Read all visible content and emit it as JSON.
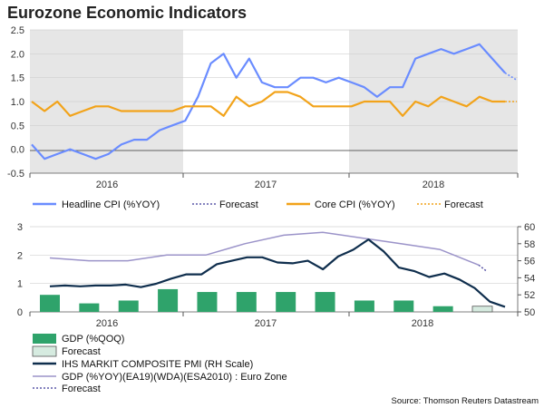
{
  "title": "Eurozone Economic Indicators",
  "source": "Source: Thomson Reuters Datastream",
  "colors": {
    "shade": "#e6e6e6",
    "headline": "#6a8cff",
    "core": "#f2a31a",
    "gdp_bar": "#2fa36b",
    "gdp_forecast_bar": "#d6ebe0",
    "pmi": "#0f2e4d",
    "gdp_yoy": "#9b93c9",
    "gdp_yoy_forecast": "#5b58a8"
  },
  "chart_data": [
    {
      "type": "line",
      "name": "CPI panel",
      "ylim": [
        -0.5,
        2.5
      ],
      "yticks": [
        "2.5",
        "2.0",
        "1.5",
        "1.0",
        "0.5",
        "0.0",
        "-0.5"
      ],
      "year_labels": [
        "2016",
        "2017",
        "2018"
      ],
      "shaded_years": [
        "2016",
        "2018"
      ],
      "series": [
        {
          "name": "Headline CPI (%YOY)",
          "values": [
            0.1,
            -0.2,
            -0.1,
            0.0,
            -0.1,
            -0.2,
            -0.1,
            0.1,
            0.2,
            0.2,
            0.4,
            0.5,
            0.6,
            1.1,
            1.8,
            2.0,
            1.5,
            1.9,
            1.4,
            1.3,
            1.3,
            1.5,
            1.5,
            1.4,
            1.5,
            1.4,
            1.3,
            1.1,
            1.3,
            1.3,
            1.9,
            2.0,
            2.1,
            2.0,
            2.1,
            2.2,
            1.9,
            1.6
          ]
        },
        {
          "name": "Forecast",
          "values": [
            1.6,
            1.45
          ]
        },
        {
          "name": "Core CPI (%YOY)",
          "values": [
            1.0,
            0.8,
            1.0,
            0.7,
            0.8,
            0.9,
            0.9,
            0.8,
            0.8,
            0.8,
            0.8,
            0.8,
            0.9,
            0.9,
            0.9,
            0.7,
            1.1,
            0.9,
            1.0,
            1.2,
            1.2,
            1.1,
            0.9,
            0.9,
            0.9,
            0.9,
            1.0,
            1.0,
            1.0,
            0.7,
            1.0,
            0.9,
            1.1,
            1.0,
            0.9,
            1.1,
            1.0,
            1.0
          ]
        },
        {
          "name": "Forecast",
          "values": [
            1.0,
            1.0
          ]
        }
      ]
    },
    {
      "type": "bar+line",
      "name": "GDP / PMI panel",
      "ylim_left": [
        0,
        3
      ],
      "yticks_left": [
        "3",
        "2",
        "1",
        "0"
      ],
      "ylim_right": [
        50,
        60
      ],
      "yticks_right": [
        "60",
        "58",
        "56",
        "54",
        "52",
        "50"
      ],
      "year_labels": [
        "2016",
        "2017",
        "2018"
      ],
      "series": [
        {
          "name": "GDP (%QOQ)",
          "values": [
            0.6,
            0.3,
            0.4,
            0.8,
            0.7,
            0.7,
            0.7,
            0.7,
            0.4,
            0.4,
            0.2
          ]
        },
        {
          "name": "Forecast",
          "values": [
            0.2
          ]
        },
        {
          "name": "IHS MARKIT COMPOSITE PMI (RH Scale)",
          "values": [
            53.0,
            53.1,
            53.0,
            53.1,
            53.1,
            53.2,
            52.9,
            53.3,
            53.9,
            54.4,
            54.4,
            55.6,
            56.0,
            56.4,
            56.4,
            55.8,
            55.7,
            56.0,
            55.0,
            56.5,
            57.3,
            58.5,
            57.1,
            55.2,
            54.8,
            54.1,
            54.5,
            53.8,
            52.8,
            51.2,
            50.6
          ]
        },
        {
          "name": "GDP (%YOY)(EA19)(WDA)(ESA2010) : Euro Zone",
          "values": [
            1.9,
            1.8,
            1.8,
            2.0,
            2.0,
            2.4,
            2.7,
            2.8,
            2.6,
            2.4,
            2.2,
            1.65
          ]
        },
        {
          "name": "Forecast",
          "values": [
            1.65,
            1.45
          ]
        }
      ]
    }
  ]
}
